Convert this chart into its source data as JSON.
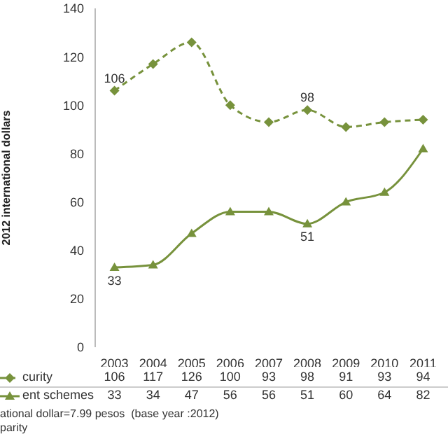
{
  "chart_data": {
    "type": "line",
    "ylabel": "2012 international dollars",
    "categories": [
      "2003",
      "2004",
      "2005",
      "2006",
      "2007",
      "2008",
      "2009",
      "2010",
      "2011"
    ],
    "series": [
      {
        "name": "curity",
        "color": "#77923c",
        "line_style": "dashed",
        "marker": "diamond",
        "values": [
          106,
          117,
          126,
          100,
          93,
          98,
          91,
          93,
          94
        ],
        "value_labels": [
          "106",
          "117",
          "126",
          "100",
          "93",
          "98",
          "91",
          "93",
          "94"
        ]
      },
      {
        "name": "ent schemes",
        "color": "#77923c",
        "line_style": "solid",
        "marker": "triangle",
        "values": [
          33,
          34,
          47,
          56,
          56,
          51,
          60,
          64,
          82
        ],
        "value_labels": [
          "33",
          "34",
          "47",
          "56",
          "56",
          "51",
          "60",
          "64",
          "82"
        ]
      }
    ],
    "legend": "bottom left",
    "ylim": [
      0,
      140
    ],
    "yticks": [
      0,
      20,
      40,
      60,
      80,
      100,
      120,
      140
    ],
    "annotations": [
      {
        "text": "106",
        "x": "2003",
        "y": 106
      },
      {
        "text": "98",
        "x": "2008",
        "y": 98
      },
      {
        "text": "33",
        "x": "2003",
        "y": 33
      },
      {
        "text": "51",
        "x": "2008",
        "y": 51
      },
      "ational dollar=7.99 pesos  (base year :2012)",
      "parity"
    ]
  }
}
